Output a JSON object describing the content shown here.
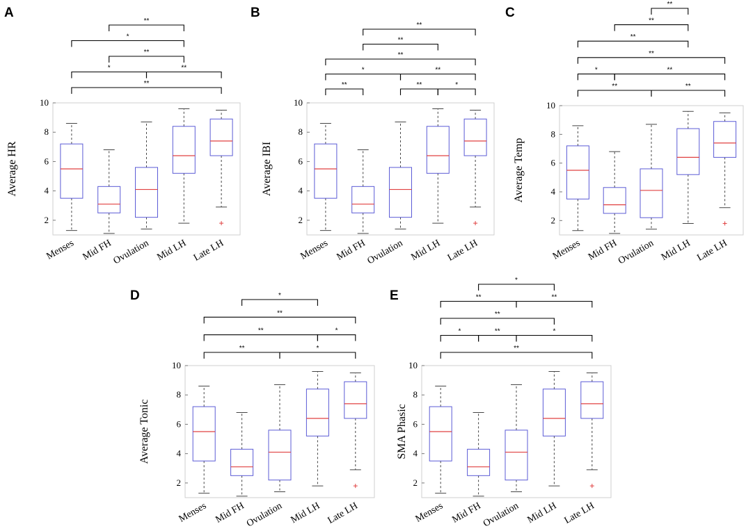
{
  "colors": {
    "box": "#5b5bd6",
    "median": "#e04040",
    "whisker": "#444444",
    "outlier": "#e04040",
    "frame": "#cfcfcf",
    "bracket": "#000000"
  },
  "chart_data": [
    {
      "panel": "A",
      "type": "box",
      "ylabel": "Average HR",
      "categories": [
        "Menses",
        "Mid FH",
        "Ovulation",
        "Mid LH",
        "Late LH"
      ],
      "ylim": [
        1,
        10
      ],
      "yticks": [
        2,
        4,
        6,
        8,
        10
      ],
      "boxes": [
        {
          "min": 1.3,
          "q1": 3.5,
          "median": 5.5,
          "q3": 7.2,
          "max": 8.6,
          "outliers": []
        },
        {
          "min": 1.1,
          "q1": 2.5,
          "median": 3.1,
          "q3": 4.3,
          "max": 6.8,
          "outliers": []
        },
        {
          "min": 1.4,
          "q1": 2.2,
          "median": 4.1,
          "q3": 5.6,
          "max": 8.7,
          "outliers": []
        },
        {
          "min": 1.8,
          "q1": 5.2,
          "median": 6.4,
          "q3": 8.4,
          "max": 9.6,
          "outliers": []
        },
        {
          "min": 2.9,
          "q1": 6.4,
          "median": 7.4,
          "q3": 8.9,
          "max": 9.5,
          "outliers": [
            1.8
          ]
        }
      ],
      "significance": [
        {
          "from": 2,
          "to": 4,
          "label": "**"
        },
        {
          "from": 1,
          "to": 4,
          "label": "*"
        },
        {
          "from": 2,
          "to": 4,
          "label": "**"
        },
        {
          "from": 1,
          "to": 3,
          "label": "*",
          "joins": [
            {
              "from": 3,
              "to": 5,
              "label": "**"
            }
          ]
        },
        {
          "from": 1,
          "to": 5,
          "label": "**"
        }
      ]
    },
    {
      "panel": "B",
      "type": "box",
      "ylabel": "Average IBI",
      "categories": [
        "Menses",
        "Mid FH",
        "Ovulation",
        "Mid LH",
        "Late LH"
      ],
      "ylim": [
        1,
        10
      ],
      "yticks": [
        2,
        4,
        6,
        8,
        10
      ],
      "boxes": [
        {
          "min": 1.3,
          "q1": 3.5,
          "median": 5.5,
          "q3": 7.2,
          "max": 8.6,
          "outliers": []
        },
        {
          "min": 1.1,
          "q1": 2.5,
          "median": 3.1,
          "q3": 4.3,
          "max": 6.8,
          "outliers": []
        },
        {
          "min": 1.4,
          "q1": 2.2,
          "median": 4.1,
          "q3": 5.6,
          "max": 8.7,
          "outliers": []
        },
        {
          "min": 1.8,
          "q1": 5.2,
          "median": 6.4,
          "q3": 8.4,
          "max": 9.6,
          "outliers": []
        },
        {
          "min": 2.9,
          "q1": 6.4,
          "median": 7.4,
          "q3": 8.9,
          "max": 9.5,
          "outliers": [
            1.8
          ]
        }
      ],
      "significance": [
        {
          "from": 2,
          "to": 5,
          "label": "**"
        },
        {
          "from": 2,
          "to": 4,
          "label": "**"
        },
        {
          "from": 1,
          "to": 5,
          "label": "**"
        },
        {
          "from": 1,
          "to": 3,
          "label": "*",
          "joins": [
            {
              "from": 3,
              "to": 5,
              "label": "**"
            }
          ]
        },
        {
          "from": 1,
          "to": 2,
          "label": "**",
          "separate": [
            {
              "from": 3,
              "to": 4,
              "label": "**"
            },
            {
              "from": 4,
              "to": 5,
              "label": "*"
            }
          ]
        }
      ]
    },
    {
      "panel": "C",
      "type": "box",
      "ylabel": "Average Temp",
      "categories": [
        "Menses",
        "Mid FH",
        "Ovulation",
        "Mid LH",
        "Late LH"
      ],
      "ylim": [
        1,
        10
      ],
      "yticks": [
        2,
        4,
        6,
        8,
        10
      ],
      "boxes": [
        {
          "min": 1.3,
          "q1": 3.5,
          "median": 5.5,
          "q3": 7.2,
          "max": 8.6,
          "outliers": []
        },
        {
          "min": 1.1,
          "q1": 2.5,
          "median": 3.1,
          "q3": 4.3,
          "max": 6.8,
          "outliers": []
        },
        {
          "min": 1.4,
          "q1": 2.2,
          "median": 4.1,
          "q3": 5.6,
          "max": 8.7,
          "outliers": []
        },
        {
          "min": 1.8,
          "q1": 5.2,
          "median": 6.4,
          "q3": 8.4,
          "max": 9.6,
          "outliers": []
        },
        {
          "min": 2.9,
          "q1": 6.4,
          "median": 7.4,
          "q3": 8.9,
          "max": 9.5,
          "outliers": [
            1.8
          ]
        }
      ],
      "significance": [
        {
          "from": 3,
          "to": 4,
          "label": "**"
        },
        {
          "from": 2,
          "to": 4,
          "label": "**"
        },
        {
          "from": 1,
          "to": 4,
          "label": "**"
        },
        {
          "from": 1,
          "to": 5,
          "label": "**"
        },
        {
          "from": 1,
          "to": 2,
          "label": "*",
          "joins": [
            {
              "from": 2,
              "to": 5,
              "label": "**"
            }
          ]
        },
        {
          "from": 1,
          "to": 3,
          "label": "**",
          "joins": [
            {
              "from": 3,
              "to": 5,
              "label": "**"
            }
          ]
        }
      ]
    },
    {
      "panel": "D",
      "type": "box",
      "ylabel": "Average Tonic",
      "categories": [
        "Menses",
        "Mid FH",
        "Ovulation",
        "Mid LH",
        "Late LH"
      ],
      "ylim": [
        1,
        10
      ],
      "yticks": [
        2,
        4,
        6,
        8,
        10
      ],
      "boxes": [
        {
          "min": 1.3,
          "q1": 3.5,
          "median": 5.5,
          "q3": 7.2,
          "max": 8.6,
          "outliers": []
        },
        {
          "min": 1.1,
          "q1": 2.5,
          "median": 3.1,
          "q3": 4.3,
          "max": 6.8,
          "outliers": []
        },
        {
          "min": 1.4,
          "q1": 2.2,
          "median": 4.1,
          "q3": 5.6,
          "max": 8.7,
          "outliers": []
        },
        {
          "min": 1.8,
          "q1": 5.2,
          "median": 6.4,
          "q3": 8.4,
          "max": 9.6,
          "outliers": []
        },
        {
          "min": 2.9,
          "q1": 6.4,
          "median": 7.4,
          "q3": 8.9,
          "max": 9.5,
          "outliers": [
            1.8
          ]
        }
      ],
      "significance": [
        {
          "from": 2,
          "to": 4,
          "label": "*"
        },
        {
          "from": 1,
          "to": 5,
          "label": "**"
        },
        {
          "from": 1,
          "to": 4,
          "label": "**",
          "joins": [
            {
              "from": 4,
              "to": 5,
              "label": "*"
            }
          ]
        },
        {
          "from": 1,
          "to": 3,
          "label": "**",
          "joins": [
            {
              "from": 3,
              "to": 5,
              "label": "*"
            }
          ]
        }
      ]
    },
    {
      "panel": "E",
      "type": "box",
      "ylabel": "SMA Phasic",
      "categories": [
        "Menses",
        "Mid FH",
        "Ovulation",
        "Mid LH",
        "Late LH"
      ],
      "ylim": [
        1,
        10
      ],
      "yticks": [
        2,
        4,
        6,
        8,
        10
      ],
      "boxes": [
        {
          "min": 1.3,
          "q1": 3.5,
          "median": 5.5,
          "q3": 7.2,
          "max": 8.6,
          "outliers": []
        },
        {
          "min": 1.1,
          "q1": 2.5,
          "median": 3.1,
          "q3": 4.3,
          "max": 6.8,
          "outliers": []
        },
        {
          "min": 1.4,
          "q1": 2.2,
          "median": 4.1,
          "q3": 5.6,
          "max": 8.7,
          "outliers": []
        },
        {
          "min": 1.8,
          "q1": 5.2,
          "median": 6.4,
          "q3": 8.4,
          "max": 9.6,
          "outliers": []
        },
        {
          "min": 2.9,
          "q1": 6.4,
          "median": 7.4,
          "q3": 8.9,
          "max": 9.5,
          "outliers": [
            1.8
          ]
        }
      ],
      "significance": [
        {
          "from": 2,
          "to": 4,
          "label": "*"
        },
        {
          "from": 1,
          "to": 3,
          "label": "**",
          "joins": [
            {
              "from": 3,
              "to": 5,
              "label": "**"
            }
          ]
        },
        {
          "from": 1,
          "to": 4,
          "label": "**"
        },
        {
          "from": 1,
          "to": 2,
          "label": "*",
          "joins": [
            {
              "from": 2,
              "to": 3,
              "label": "**"
            },
            {
              "from": 3,
              "to": 5,
              "label": "*"
            }
          ]
        },
        {
          "from": 1,
          "to": 5,
          "label": "**"
        }
      ]
    }
  ]
}
